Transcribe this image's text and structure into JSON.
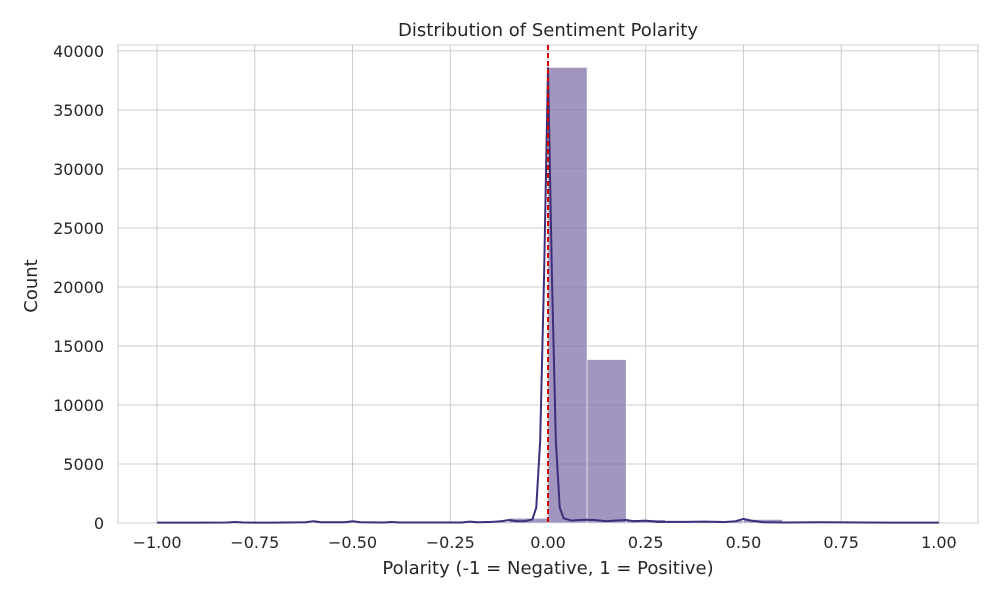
{
  "chart_data": {
    "type": "bar",
    "title": "Distribution of Sentiment Polarity",
    "xlabel": "Polarity (-1 = Negative, 1 = Positive)",
    "ylabel": "Count",
    "xlim": [
      -1.1,
      1.1
    ],
    "ylim": [
      0,
      40500
    ],
    "x_ticks": [
      -1.0,
      -0.75,
      -0.5,
      -0.25,
      0.0,
      0.25,
      0.5,
      0.75,
      1.0
    ],
    "x_tick_labels": [
      "−1.00",
      "−0.75",
      "−0.50",
      "−0.25",
      "0.00",
      "0.25",
      "0.50",
      "0.75",
      "1.00"
    ],
    "y_ticks": [
      0,
      5000,
      10000,
      15000,
      20000,
      25000,
      30000,
      35000,
      40000
    ],
    "y_tick_labels": [
      "0",
      "5000",
      "10000",
      "15000",
      "20000",
      "25000",
      "30000",
      "35000",
      "40000"
    ],
    "grid": true,
    "histogram": {
      "bin_edges": [
        -1.0,
        -0.9,
        -0.8,
        -0.7,
        -0.6,
        -0.5,
        -0.4,
        -0.3,
        -0.2,
        -0.1,
        0.0,
        0.1,
        0.2,
        0.3,
        0.4,
        0.5,
        0.6,
        0.7,
        0.8,
        0.9,
        1.0
      ],
      "counts": [
        40,
        40,
        60,
        40,
        120,
        100,
        60,
        60,
        120,
        400,
        38600,
        13850,
        280,
        150,
        180,
        300,
        60,
        40,
        40,
        40
      ],
      "color": "#7b6aa6"
    },
    "kde": {
      "color": "#3b2f7a",
      "x": [
        -1.0,
        -0.9,
        -0.82,
        -0.8,
        -0.78,
        -0.7,
        -0.62,
        -0.6,
        -0.58,
        -0.52,
        -0.5,
        -0.48,
        -0.42,
        -0.4,
        -0.38,
        -0.3,
        -0.22,
        -0.2,
        -0.18,
        -0.15,
        -0.12,
        -0.1,
        -0.08,
        -0.06,
        -0.04,
        -0.03,
        -0.02,
        -0.01,
        0.0,
        0.01,
        0.02,
        0.03,
        0.04,
        0.06,
        0.08,
        0.1,
        0.12,
        0.15,
        0.17,
        0.2,
        0.22,
        0.25,
        0.28,
        0.35,
        0.4,
        0.45,
        0.48,
        0.5,
        0.52,
        0.55,
        0.6,
        0.7,
        0.8,
        0.9,
        1.0
      ],
      "y": [
        30,
        30,
        40,
        80,
        40,
        30,
        60,
        150,
        60,
        60,
        150,
        60,
        40,
        80,
        40,
        40,
        40,
        120,
        60,
        80,
        150,
        250,
        150,
        150,
        300,
        1300,
        7000,
        21000,
        38600,
        21000,
        7000,
        1300,
        400,
        200,
        250,
        280,
        250,
        150,
        200,
        250,
        150,
        200,
        100,
        100,
        120,
        80,
        150,
        350,
        200,
        60,
        40,
        60,
        40,
        30,
        30
      ]
    },
    "vline": {
      "x": 0.0,
      "color": "#cc0000",
      "style": "dashed"
    }
  }
}
